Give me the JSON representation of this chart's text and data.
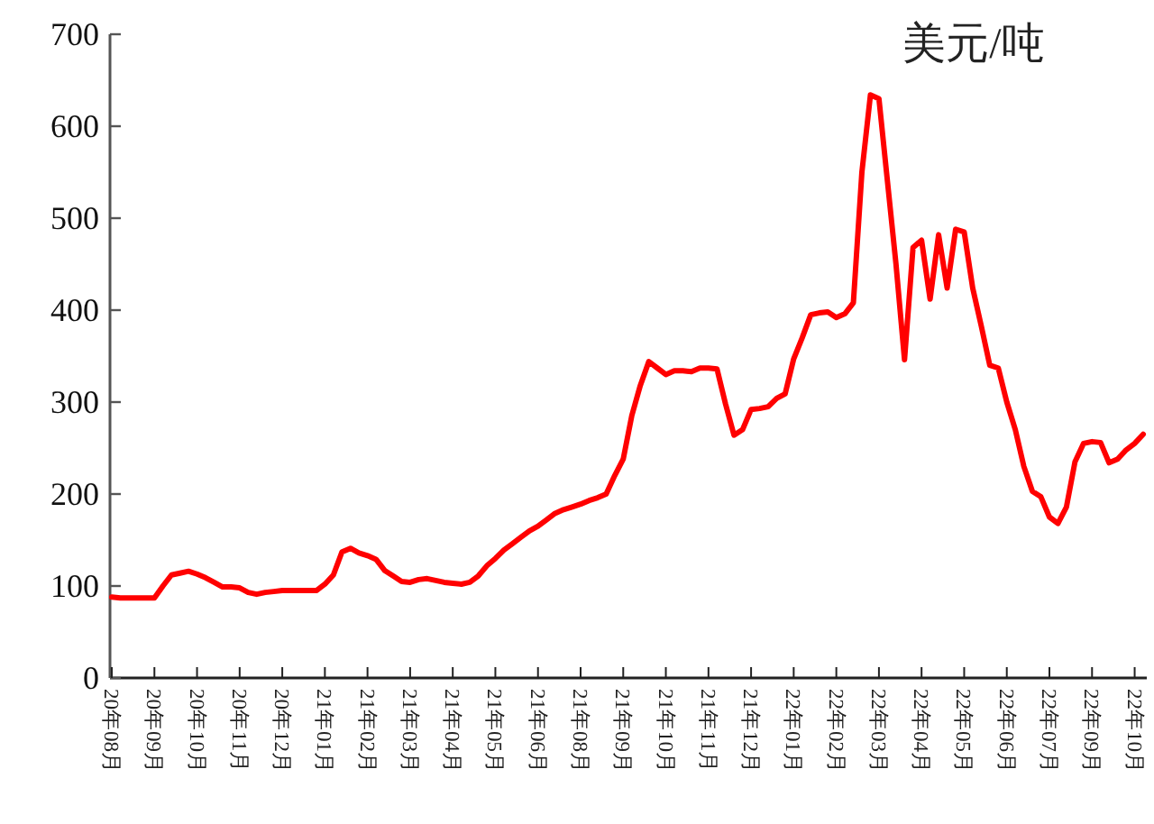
{
  "chart_data": {
    "type": "line",
    "ylabel": "美元/吨",
    "color": "#ff0000",
    "categories": [
      "20年08月",
      null,
      null,
      null,
      null,
      "20年09月",
      null,
      null,
      null,
      null,
      "20年10月",
      null,
      null,
      null,
      null,
      "20年11月",
      null,
      null,
      null,
      null,
      "20年12月",
      null,
      null,
      null,
      null,
      "21年01月",
      null,
      null,
      null,
      null,
      "21年02月",
      null,
      null,
      null,
      null,
      "21年03月",
      null,
      null,
      null,
      null,
      "21年04月",
      null,
      null,
      null,
      null,
      "21年05月",
      null,
      null,
      null,
      null,
      "21年06月",
      null,
      null,
      null,
      null,
      "21年08月",
      null,
      null,
      null,
      null,
      "21年09月",
      null,
      null,
      null,
      null,
      "21年10月",
      null,
      null,
      null,
      null,
      "21年11月",
      null,
      null,
      null,
      null,
      "21年12月",
      null,
      null,
      null,
      null,
      "22年01月",
      null,
      null,
      null,
      null,
      "22年02月",
      null,
      null,
      null,
      null,
      "22年03月",
      null,
      null,
      null,
      null,
      "22年04月",
      null,
      null,
      null,
      null,
      "22年05月",
      null,
      null,
      null,
      null,
      "22年06月",
      null,
      null,
      null,
      null,
      "22年07月",
      null,
      null,
      null,
      null,
      "22年09月",
      null,
      null,
      null,
      null,
      "22年10月",
      null
    ],
    "values": [
      88,
      87,
      87,
      87,
      87,
      87,
      100,
      112,
      114,
      116,
      113,
      109,
      104,
      99,
      99,
      98,
      93,
      91,
      93,
      94,
      95,
      95,
      95,
      95,
      95,
      102,
      112,
      137,
      141,
      136,
      133,
      129,
      117,
      111,
      105,
      104,
      107,
      108,
      106,
      104,
      103,
      102,
      104,
      111,
      122,
      130,
      139,
      146,
      153,
      160,
      165,
      172,
      179,
      183,
      186,
      189,
      193,
      196,
      200,
      220,
      238,
      285,
      318,
      344,
      337,
      330,
      334,
      334,
      333,
      337,
      337,
      336,
      298,
      264,
      270,
      292,
      293,
      295,
      304,
      309,
      347,
      370,
      395,
      397,
      398,
      392,
      396,
      408,
      550,
      634,
      630,
      540,
      450,
      346,
      468,
      476,
      412,
      482,
      424,
      488,
      485,
      424,
      383,
      340,
      337,
      300,
      270,
      230,
      203,
      197,
      175,
      168,
      186,
      235,
      255,
      257,
      256,
      234,
      238,
      248,
      255,
      265
    ],
    "ylim": [
      0,
      700
    ],
    "yticks": [
      0,
      100,
      200,
      300,
      400,
      500,
      600,
      700
    ]
  }
}
